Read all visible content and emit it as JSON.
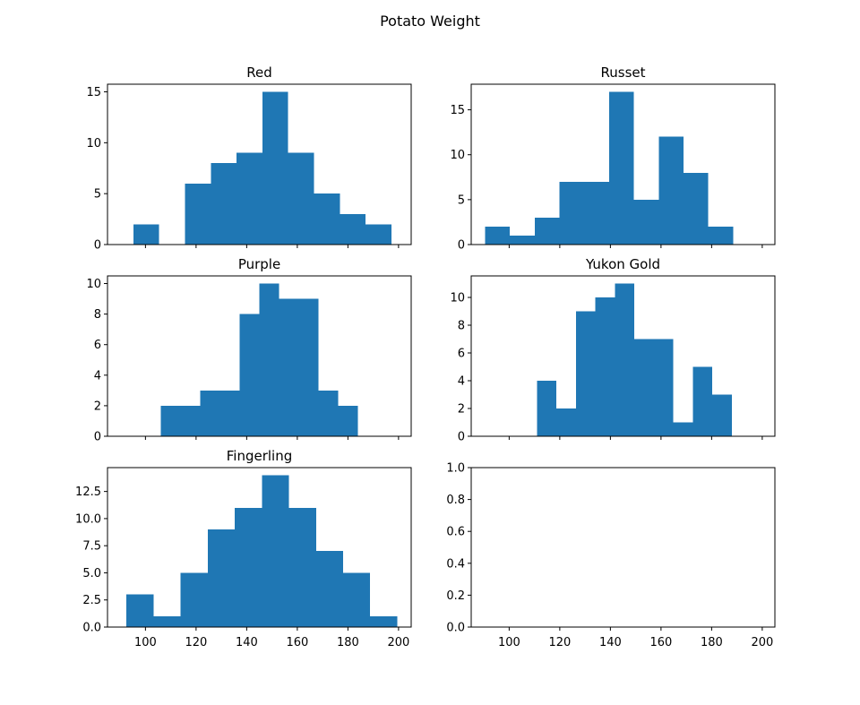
{
  "chart_data": {
    "type": "histogram",
    "title": "Potato Weight",
    "layout": "3 rows x 2 columns, shared x-axis",
    "bar_color": "#1f77b4",
    "xlim": [
      85,
      205
    ],
    "x_ticks": [
      100,
      120,
      140,
      160,
      180,
      200
    ],
    "panels": [
      {
        "title": "Red",
        "bin_edges": [
          95.2,
          105.4,
          115.6,
          125.8,
          136.0,
          146.2,
          156.4,
          166.6,
          176.8,
          187.0,
          197.2
        ],
        "counts": [
          2,
          0,
          6,
          8,
          9,
          15,
          9,
          5,
          3,
          2
        ],
        "ylim": [
          0,
          15.75
        ],
        "y_ticks": [
          0,
          5,
          10,
          15
        ],
        "y_tick_labels": [
          "0",
          "5",
          "10",
          "15"
        ]
      },
      {
        "title": "Russet",
        "bin_edges": [
          90.5,
          100.3,
          110.1,
          119.9,
          129.7,
          139.5,
          149.3,
          159.1,
          168.9,
          178.7,
          188.5
        ],
        "counts": [
          2,
          1,
          3,
          7,
          7,
          17,
          5,
          12,
          8,
          2
        ],
        "ylim": [
          0,
          17.85
        ],
        "y_ticks": [
          0,
          5,
          10,
          15
        ],
        "y_tick_labels": [
          "0",
          "5",
          "10",
          "15"
        ]
      },
      {
        "title": "Purple",
        "bin_edges": [
          106.0,
          113.8,
          121.6,
          129.4,
          137.2,
          145.0,
          152.8,
          160.6,
          168.4,
          176.2,
          184.0
        ],
        "counts": [
          2,
          2,
          3,
          3,
          8,
          10,
          9,
          9,
          3,
          2
        ],
        "ylim": [
          0,
          10.5
        ],
        "y_ticks": [
          0,
          2,
          4,
          6,
          8,
          10
        ],
        "y_tick_labels": [
          "0",
          "2",
          "4",
          "6",
          "8",
          "10"
        ]
      },
      {
        "title": "Yukon Gold",
        "bin_edges": [
          111.0,
          118.7,
          126.4,
          134.1,
          141.8,
          149.5,
          157.2,
          164.9,
          172.6,
          180.3,
          188.0
        ],
        "counts": [
          4,
          2,
          9,
          10,
          11,
          7,
          7,
          1,
          5,
          3
        ],
        "ylim": [
          0,
          11.55
        ],
        "y_ticks": [
          0,
          2,
          4,
          6,
          8,
          10
        ],
        "y_tick_labels": [
          "0",
          "2",
          "4",
          "6",
          "8",
          "10"
        ]
      },
      {
        "title": "Fingerling",
        "bin_edges": [
          92.5,
          103.2,
          113.9,
          124.6,
          135.3,
          146.0,
          156.7,
          167.4,
          178.1,
          188.8,
          199.5
        ],
        "counts": [
          3,
          1,
          5,
          9,
          11,
          14,
          11,
          7,
          5,
          1
        ],
        "ylim": [
          0,
          14.7
        ],
        "y_ticks": [
          0,
          2.5,
          5,
          7.5,
          10,
          12.5
        ],
        "y_tick_labels": [
          "0.0",
          "2.5",
          "5.0",
          "7.5",
          "10.0",
          "12.5"
        ]
      },
      {
        "title": "",
        "bin_edges": [],
        "counts": [],
        "ylim": [
          0,
          1
        ],
        "y_ticks": [
          0,
          0.2,
          0.4,
          0.6,
          0.8,
          1.0
        ],
        "y_tick_labels": [
          "0.0",
          "0.2",
          "0.4",
          "0.6",
          "0.8",
          "1.0"
        ]
      }
    ]
  }
}
